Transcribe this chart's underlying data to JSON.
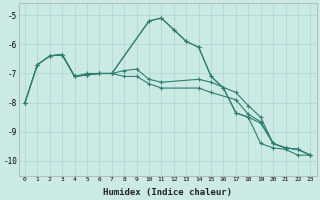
{
  "xlabel": "Humidex (Indice chaleur)",
  "xlim": [
    -0.5,
    23.5
  ],
  "ylim": [
    -10.5,
    -4.6
  ],
  "yticks": [
    -10,
    -9,
    -8,
    -7,
    -6,
    -5
  ],
  "xticks": [
    0,
    1,
    2,
    3,
    4,
    5,
    6,
    7,
    8,
    9,
    10,
    11,
    12,
    13,
    14,
    15,
    16,
    17,
    18,
    19,
    20,
    21,
    22,
    23
  ],
  "bg_color": "#cceae4",
  "grid_major_color": "#b0d8d0",
  "grid_minor_color": "#daf0eb",
  "line_color": "#2e7d6e",
  "series": [
    {
      "x": [
        0,
        1,
        2,
        3,
        4,
        5,
        6,
        7,
        10,
        11,
        12,
        13,
        14,
        15,
        16,
        17,
        18,
        19,
        20,
        21,
        22,
        23
      ],
      "y": [
        -8.0,
        -6.7,
        -6.4,
        -6.35,
        -7.1,
        -7.0,
        -7.0,
        -7.0,
        -5.2,
        -5.1,
        -5.5,
        -5.9,
        -6.1,
        -7.1,
        -7.5,
        -8.35,
        -8.5,
        -9.4,
        -9.55,
        -9.6,
        -9.8,
        -9.8
      ]
    },
    {
      "x": [
        0,
        1,
        2,
        3,
        4,
        5,
        6,
        7,
        8,
        9,
        10,
        11,
        14,
        15,
        17,
        18,
        19,
        20,
        21,
        22,
        23
      ],
      "y": [
        -8.0,
        -6.7,
        -6.4,
        -6.35,
        -7.1,
        -7.05,
        -7.0,
        -7.0,
        -6.9,
        -6.85,
        -7.2,
        -7.3,
        -7.2,
        -7.3,
        -7.65,
        -8.1,
        -8.5,
        -9.4,
        -9.55,
        -9.6,
        -9.8
      ]
    },
    {
      "x": [
        0,
        1,
        2,
        3,
        4,
        5,
        6,
        7,
        8,
        9,
        10,
        11,
        14,
        15,
        17,
        18,
        19,
        20,
        21,
        22,
        23
      ],
      "y": [
        -8.0,
        -6.7,
        -6.4,
        -6.35,
        -7.1,
        -7.05,
        -7.0,
        -7.0,
        -7.1,
        -7.1,
        -7.35,
        -7.5,
        -7.5,
        -7.65,
        -7.9,
        -8.4,
        -8.65,
        -9.4,
        -9.55,
        -9.6,
        -9.8
      ]
    },
    {
      "x": [
        2,
        3,
        4,
        5,
        6,
        7,
        10,
        11,
        12,
        13,
        14,
        15,
        16,
        17,
        18,
        19,
        20,
        21,
        22,
        23
      ],
      "y": [
        -6.4,
        -6.35,
        -7.1,
        -7.05,
        -7.0,
        -7.0,
        -5.2,
        -5.1,
        -5.5,
        -5.9,
        -6.1,
        -7.1,
        -7.5,
        -8.35,
        -8.5,
        -8.7,
        -9.4,
        -9.55,
        -9.6,
        -9.8
      ]
    }
  ]
}
